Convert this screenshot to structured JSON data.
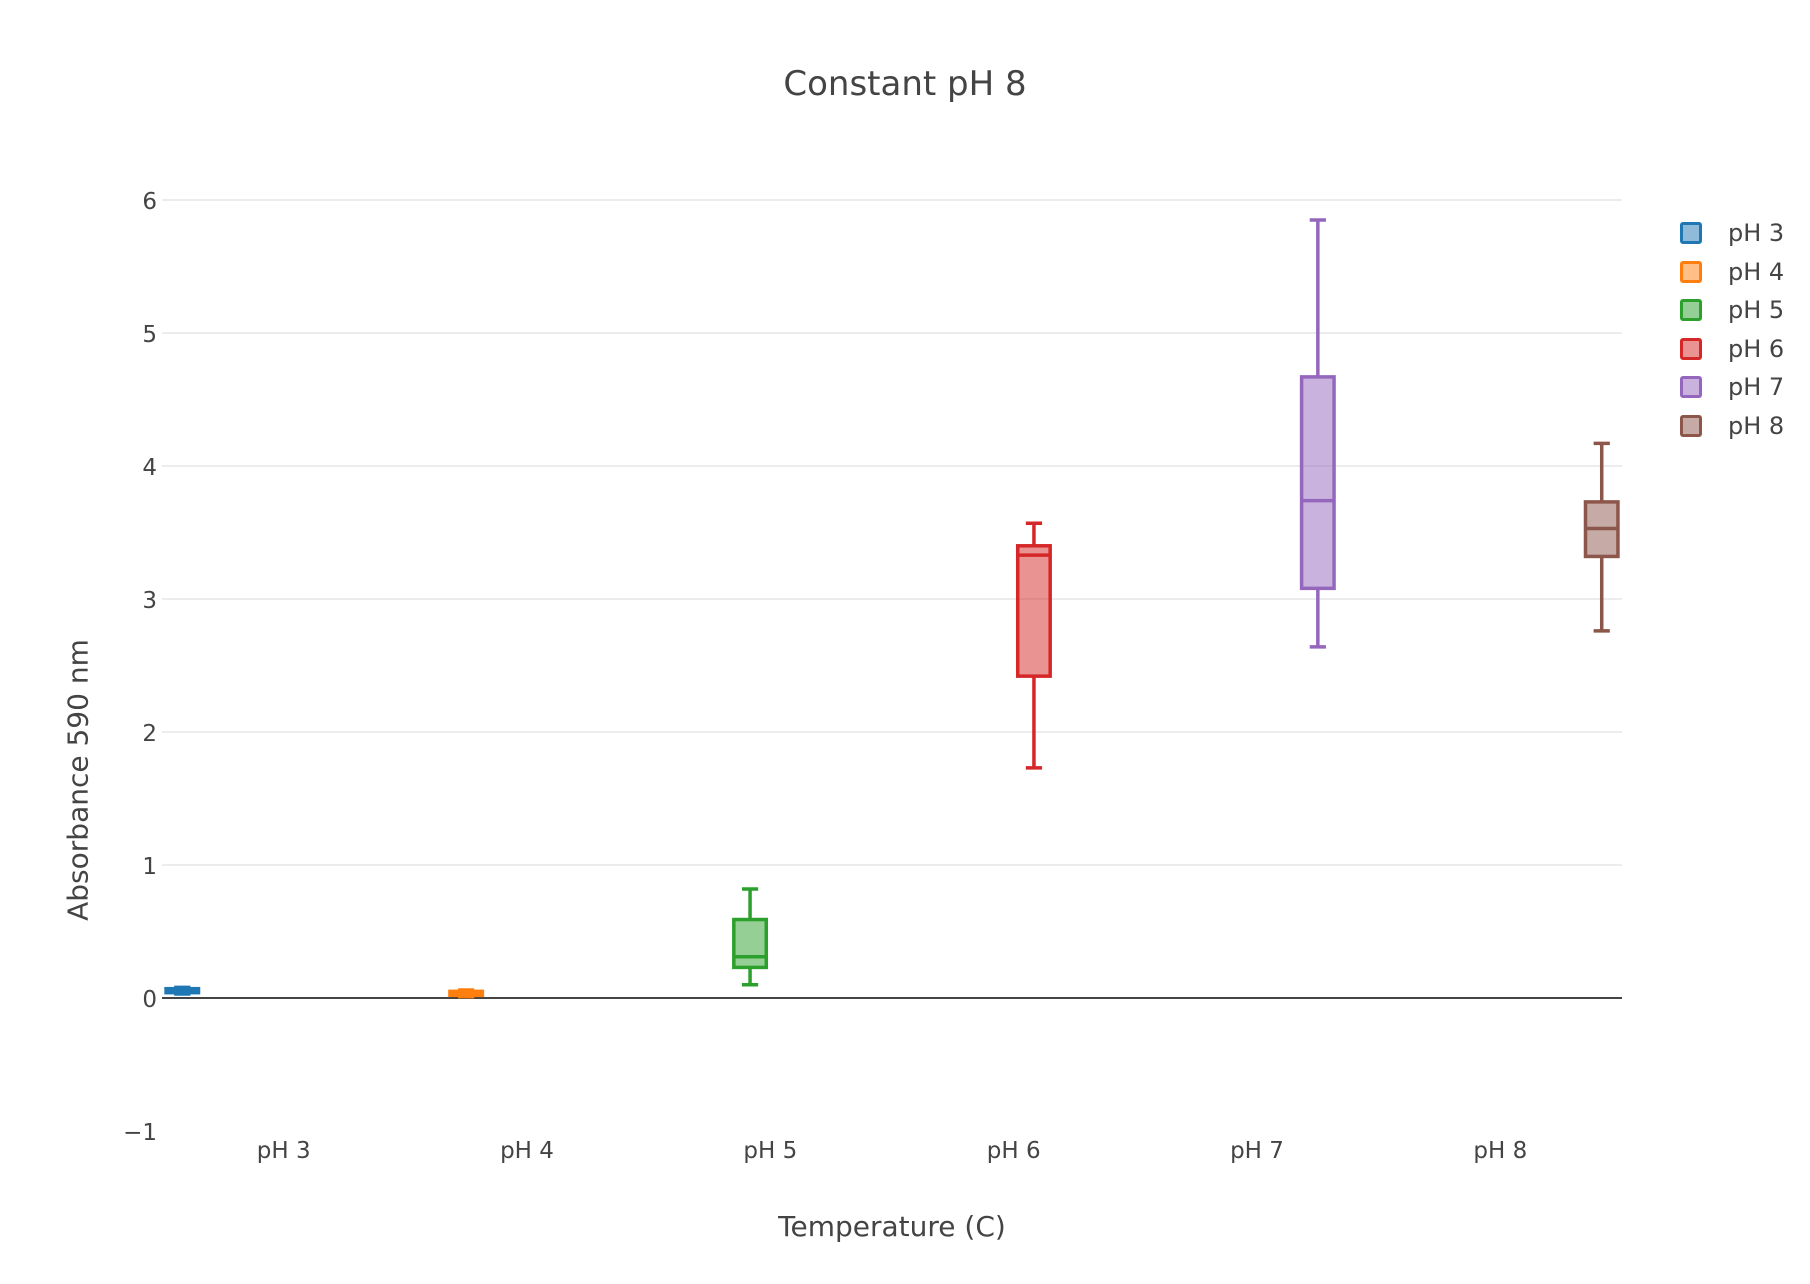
{
  "chart_data": {
    "type": "box",
    "title": "Constant pH 8",
    "xlabel": "Temperature (C)",
    "ylabel": "Absorbance 590 nm",
    "ylim": [
      -1,
      6.2
    ],
    "yticks": [
      -1,
      0,
      1,
      2,
      3,
      4,
      5,
      6
    ],
    "ytick_labels": [
      "−1",
      "0",
      "1",
      "2",
      "3",
      "4",
      "5",
      "6"
    ],
    "categories": [
      "pH 3",
      "pH 4",
      "pH 5",
      "pH 6",
      "pH 7",
      "pH 8"
    ],
    "grid": true,
    "legend_position": "top-right",
    "series": [
      {
        "name": "pH 3",
        "color": "#1f77b4",
        "min": 0.03,
        "q1": 0.04,
        "median": 0.05,
        "q3": 0.07,
        "max": 0.08
      },
      {
        "name": "pH 4",
        "color": "#ff7f0e",
        "min": 0.01,
        "q1": 0.02,
        "median": 0.04,
        "q3": 0.05,
        "max": 0.06
      },
      {
        "name": "pH 5",
        "color": "#2ca02c",
        "min": 0.1,
        "q1": 0.23,
        "median": 0.31,
        "q3": 0.59,
        "max": 0.82
      },
      {
        "name": "pH 6",
        "color": "#d62728",
        "min": 1.73,
        "q1": 2.42,
        "median": 3.33,
        "q3": 3.4,
        "max": 3.57
      },
      {
        "name": "pH 7",
        "color": "#9467bd",
        "min": 2.64,
        "q1": 3.08,
        "median": 3.74,
        "q3": 4.67,
        "max": 5.85
      },
      {
        "name": "pH 8",
        "color": "#8c564b",
        "min": 2.76,
        "q1": 3.32,
        "median": 3.53,
        "q3": 3.73,
        "max": 4.17
      }
    ]
  }
}
